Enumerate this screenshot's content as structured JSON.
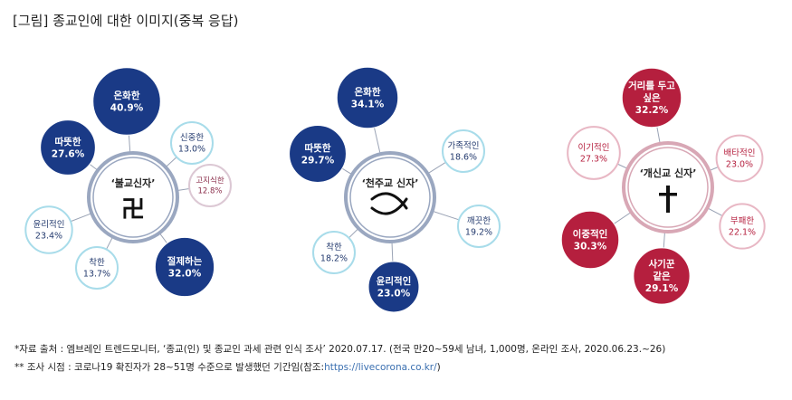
{
  "title": "[그림] 종교인에 대한 이미지(중복 응답)",
  "chart_data": [
    {
      "type": "bubble",
      "center_label": "‘불교신자’",
      "center_symbol": "卍",
      "bubbles": [
        {
          "label": "온화한",
          "value": 40.9,
          "style": "strong"
        },
        {
          "label": "따뜻한",
          "value": 27.6,
          "style": "strong"
        },
        {
          "label": "신중한",
          "value": 13.0,
          "style": "light"
        },
        {
          "label": "고지식한",
          "value": 12.8,
          "style": "pale"
        },
        {
          "label": "윤리적인",
          "value": 23.4,
          "style": "light"
        },
        {
          "label": "착한",
          "value": 13.7,
          "style": "light"
        },
        {
          "label": "절제하는",
          "value": 32.0,
          "style": "strong"
        }
      ]
    },
    {
      "type": "bubble",
      "center_label": "‘천주교 신자’",
      "center_symbol": "fish",
      "bubbles": [
        {
          "label": "온화한",
          "value": 34.1,
          "style": "strong"
        },
        {
          "label": "따뜻한",
          "value": 29.7,
          "style": "strong"
        },
        {
          "label": "가족적인",
          "value": 18.6,
          "style": "light"
        },
        {
          "label": "깨끗한",
          "value": 19.2,
          "style": "light"
        },
        {
          "label": "착한",
          "value": 18.2,
          "style": "light"
        },
        {
          "label": "윤리적인",
          "value": 23.0,
          "style": "strong"
        }
      ]
    },
    {
      "type": "bubble",
      "center_label": "‘개신교 신자’",
      "center_symbol": "cross",
      "bubbles": [
        {
          "label": "거리를 두고 싶은",
          "value": 32.2,
          "style": "strong"
        },
        {
          "label": "이기적인",
          "value": 27.3,
          "style": "light"
        },
        {
          "label": "배타적인",
          "value": 23.0,
          "style": "light"
        },
        {
          "label": "부패한",
          "value": 22.1,
          "style": "light"
        },
        {
          "label": "이중적인",
          "value": 30.3,
          "style": "strong"
        },
        {
          "label": "사기꾼 같은",
          "value": 29.1,
          "style": "strong"
        }
      ]
    }
  ],
  "colors": {
    "blue_strong": "#1a3a86",
    "blue_light_stroke": "#a8dcea",
    "blue_pale_stroke": "#dcc8d4",
    "red_strong": "#b51f3e",
    "red_light_stroke": "#e8b7c4",
    "ring": "#9aa7c0",
    "red_ring": "#d8a7b5",
    "connector": "#9aa3b5"
  },
  "notes": [
    "*자료 출처 : 엠브레인 트렌드모니터, ‘종교(인) 및 종교인 과세 관련 인식 조사’ 2020.07.17. (전국 만20~59세 남녀, 1,000명, 온라인 조사, 2020.06.23.~26)",
    "** 조사 시점 : 코로나19 확진자가 28~51명 수준으로 발생했던 기간임(참조:",
    "https://livecorona.co.kr/",
    ")"
  ]
}
